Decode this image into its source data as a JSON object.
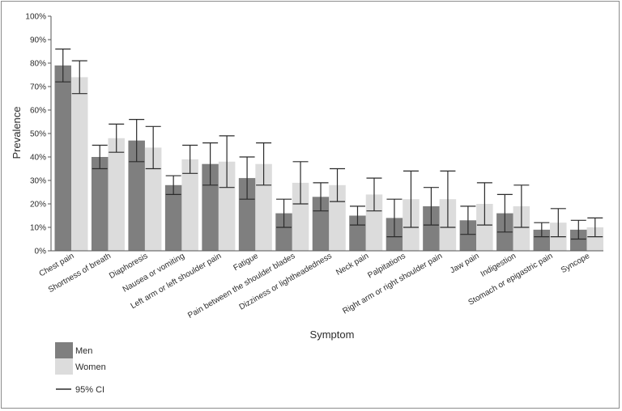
{
  "chart_data": {
    "type": "bar",
    "xlabel": "Symptom",
    "ylabel": "Prevalence",
    "ylim": [
      0,
      100
    ],
    "yticks": [
      "0%",
      "10%",
      "20%",
      "30%",
      "40%",
      "50%",
      "60%",
      "70%",
      "80%",
      "90%",
      "100%"
    ],
    "categories": [
      "Chest pain",
      "Shortness of breath",
      "Diaphoresis",
      "Nausea or vomiting",
      "Left arm or left shoulder pain",
      "Fatigue",
      "Pain between the shoulder blades",
      "Dizziness or lightheadedness",
      "Neck pain",
      "Palpitations",
      "Right arm or right shoulder pain",
      "Jaw pain",
      "Indigestion",
      "Stomach or epigastric pain",
      "Syncope"
    ],
    "series": [
      {
        "name": "Men",
        "color": "#7f7f7f",
        "values": [
          79,
          40,
          47,
          28,
          37,
          31,
          16,
          23,
          15,
          14,
          19,
          13,
          16,
          9,
          9
        ],
        "ci_low": [
          72,
          35,
          38,
          24,
          28,
          22,
          10,
          17,
          11,
          6,
          11,
          7,
          8,
          6,
          5
        ],
        "ci_high": [
          86,
          45,
          56,
          32,
          46,
          40,
          22,
          29,
          19,
          22,
          27,
          19,
          24,
          12,
          13
        ]
      },
      {
        "name": "Women",
        "color": "#dcdcdc",
        "values": [
          74,
          48,
          44,
          39,
          38,
          37,
          29,
          28,
          24,
          22,
          22,
          20,
          19,
          12,
          10
        ],
        "ci_low": [
          67,
          42,
          35,
          33,
          27,
          28,
          20,
          21,
          17,
          10,
          10,
          11,
          10,
          6,
          6
        ],
        "ci_high": [
          81,
          54,
          53,
          45,
          49,
          46,
          38,
          35,
          31,
          34,
          34,
          29,
          28,
          18,
          14
        ]
      }
    ],
    "legend": {
      "placement": "bottom-left",
      "items": [
        "Men",
        "Women"
      ],
      "ci_label": "95% CI"
    },
    "grid": false
  }
}
